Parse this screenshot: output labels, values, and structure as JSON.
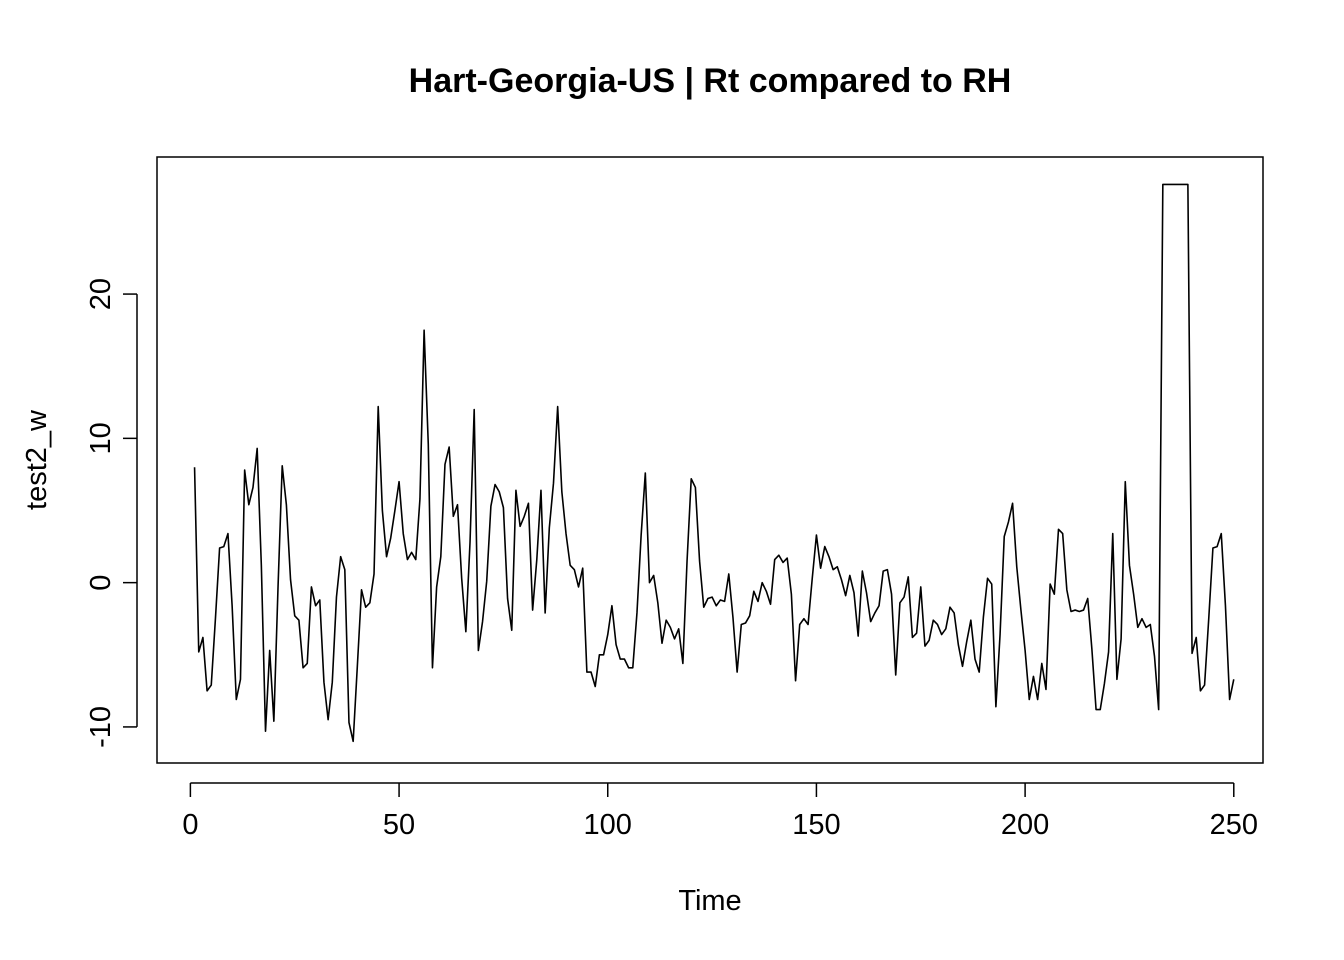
{
  "chart_data": {
    "type": "line",
    "title": "Hart-Georgia-US | Rt compared to RH",
    "xlabel": "Time",
    "ylabel": "test2_w",
    "xlim": [
      -8,
      257
    ],
    "ylim": [
      -12.5,
      29.5
    ],
    "x_ticks": [
      0,
      50,
      100,
      150,
      200,
      250
    ],
    "y_ticks": [
      -10,
      0,
      10,
      20
    ],
    "grid": false,
    "legend": "none",
    "line_color": "#000000",
    "series": [
      {
        "x_start": 1,
        "values": [
          8.0,
          -4.8,
          -3.8,
          -7.5,
          -7.1,
          -2.5,
          2.4,
          2.5,
          3.4,
          -1.6,
          -8.1,
          -6.7,
          7.8,
          5.4,
          6.6,
          9.3,
          1.2,
          -10.3,
          -4.7,
          -9.6,
          -0.3,
          8.1,
          5.4,
          0.2,
          -2.3,
          -2.6,
          -5.9,
          -5.6,
          -0.3,
          -1.6,
          -1.2,
          -6.9,
          -9.5,
          -6.9,
          -1.0,
          1.8,
          0.9,
          -9.7,
          -11.0,
          -5.8,
          -0.5,
          -1.7,
          -1.4,
          0.6,
          12.2,
          5.0,
          1.8,
          3.1,
          5.0,
          7.0,
          3.4,
          1.6,
          2.1,
          1.6,
          5.8,
          17.5,
          9.6,
          -5.9,
          -0.3,
          1.8,
          8.2,
          9.4,
          4.6,
          5.4,
          0.3,
          -3.4,
          2.8,
          12.0,
          -4.7,
          -2.7,
          0.1,
          5.3,
          6.8,
          6.3,
          5.2,
          -1.1,
          -3.3,
          6.4,
          3.9,
          4.6,
          5.5,
          -1.9,
          1.6,
          6.4,
          -2.1,
          3.8,
          6.9,
          12.2,
          6.3,
          3.4,
          1.2,
          0.9,
          -0.3,
          1.0,
          -6.2,
          -6.2,
          -7.2,
          -5.0,
          -5.0,
          -3.6,
          -1.6,
          -4.3,
          -5.3,
          -5.3,
          -5.9,
          -5.9,
          -2.1,
          3.3,
          7.6,
          0.0,
          0.5,
          -1.4,
          -4.2,
          -2.6,
          -3.1,
          -3.9,
          -3.2,
          -5.6,
          1.5,
          7.2,
          6.6,
          1.5,
          -1.7,
          -1.1,
          -1.0,
          -1.6,
          -1.2,
          -1.3,
          0.6,
          -2.4,
          -6.2,
          -2.9,
          -2.8,
          -2.3,
          -0.6,
          -1.3,
          0.0,
          -0.6,
          -1.5,
          1.6,
          1.9,
          1.4,
          1.7,
          -0.8,
          -6.8,
          -2.9,
          -2.5,
          -2.9,
          0.3,
          3.3,
          1.0,
          2.5,
          1.8,
          0.9,
          1.1,
          0.2,
          -0.9,
          0.5,
          -0.7,
          -3.7,
          0.8,
          -0.7,
          -2.7,
          -2.1,
          -1.6,
          0.8,
          0.9,
          -0.8,
          -6.4,
          -1.4,
          -1.0,
          0.4,
          -3.8,
          -3.5,
          -0.3,
          -4.4,
          -4.0,
          -2.6,
          -2.9,
          -3.6,
          -3.2,
          -1.7,
          -2.1,
          -4.3,
          -5.8,
          -4.1,
          -2.6,
          -5.3,
          -6.2,
          -2.4,
          0.3,
          -0.1,
          -8.6,
          -3.6,
          3.2,
          4.2,
          5.5,
          1.1,
          -1.9,
          -4.7,
          -8.1,
          -6.5,
          -8.1,
          -5.6,
          -7.4,
          -0.1,
          -0.8,
          3.7,
          3.4,
          -0.5,
          -2.0,
          -1.9,
          -2.0,
          -1.9,
          -1.1,
          -4.6,
          -8.8,
          -8.8,
          -7.0,
          -4.8,
          3.4,
          -6.7,
          -3.9,
          7.0,
          1.2,
          -0.8,
          -3.1,
          -2.5,
          -3.1,
          -2.9,
          -5.1,
          -8.8,
          27.6,
          27.6,
          27.6,
          27.6,
          27.6,
          27.6,
          27.6,
          -4.9,
          -3.8,
          -7.5,
          -7.1,
          -2.5,
          2.4,
          2.5,
          3.4,
          -1.6,
          -8.1,
          -6.7
        ]
      }
    ]
  }
}
